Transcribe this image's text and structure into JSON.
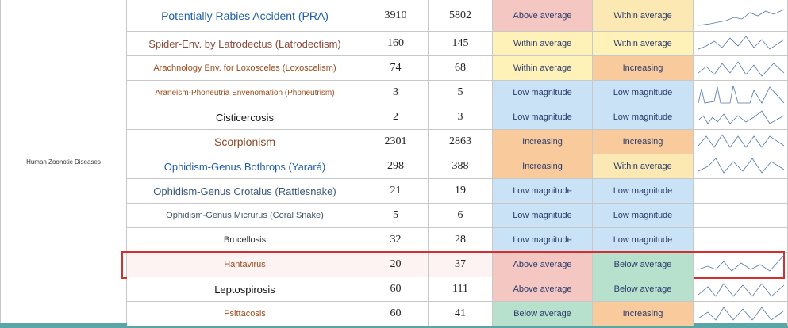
{
  "group": "Human Zoonotic Diseases",
  "rows": [
    {
      "disease": "Potentially Rabies Accident (PRA)",
      "text_color": "#1f5fa6",
      "size": 14,
      "previous": "3910",
      "current": "5802",
      "status1": "Above average",
      "color1": "#f4c7c3",
      "status2": "Within average",
      "color2": "#fce8b2"
    },
    {
      "disease": "Spider-Env. by Latrodectus (Latrodectism)",
      "text_color": "#8a4a3a",
      "size": 13,
      "previous": "160",
      "current": "145",
      "status1": "Within average",
      "color1": "#fff2b8",
      "status2": "Within average",
      "color2": "#fff2b8"
    },
    {
      "disease": "Arachnology Env. for Loxosceles (Loxoscelism)",
      "text_color": "#9a4a1a",
      "size": 11,
      "previous": "74",
      "current": "68",
      "status1": "Within average",
      "color1": "#fff2b8",
      "status2": "Increasing",
      "color2": "#f9cb9c"
    },
    {
      "disease": "Araneism-Phoneutria Envenomation (Phoneutrism)",
      "text_color": "#9a4a1a",
      "size": 10,
      "previous": "3",
      "current": "5",
      "status1": "Low magnitude",
      "color1": "#c9e2f5",
      "status2": "Low magnitude",
      "color2": "#c9e2f5"
    },
    {
      "disease": "Cisticercosis",
      "text_color": "#111111",
      "size": 13,
      "previous": "2",
      "current": "3",
      "status1": "Low magnitude",
      "color1": "#c9e2f5",
      "status2": "Low magnitude",
      "color2": "#c9e2f5"
    },
    {
      "disease": "Scorpionism",
      "text_color": "#8a4a2a",
      "size": 14,
      "previous": "2301",
      "current": "2863",
      "status1": "Increasing",
      "color1": "#f9cb9c",
      "status2": "Increasing",
      "color2": "#f9cb9c"
    },
    {
      "disease": "Ophidism-Genus Bothrops (Yarará)",
      "text_color": "#1f5fa6",
      "size": 13,
      "previous": "298",
      "current": "388",
      "status1": "Increasing",
      "color1": "#f9cb9c",
      "status2": "Within average",
      "color2": "#fce8b2"
    },
    {
      "disease": "Ophidism-Genus Crotalus (Rattlesnake)",
      "text_color": "#3a5a7a",
      "size": 13,
      "previous": "21",
      "current": "19",
      "status1": "Low magnitude",
      "color1": "#c9e2f5",
      "status2": "Low magnitude",
      "color2": "#c9e2f5"
    },
    {
      "disease": "Ophidism-Genus Micrurus (Coral Snake)",
      "text_color": "#445566",
      "size": 11,
      "previous": "5",
      "current": "6",
      "status1": "Low magnitude",
      "color1": "#c9e2f5",
      "status2": "Low magnitude",
      "color2": "#c9e2f5"
    },
    {
      "disease": "Brucellosis",
      "text_color": "#333333",
      "size": 11,
      "previous": "32",
      "current": "28",
      "status1": "Low magnitude",
      "color1": "#c9e2f5",
      "status2": "Low magnitude",
      "color2": "#c9e2f5"
    },
    {
      "disease": "Hantavirus",
      "text_color": "#9a4a1a",
      "size": 11,
      "previous": "20",
      "current": "37",
      "status1": "Above average",
      "color1": "#f4c7c3",
      "status2": "Below average",
      "color2": "#b7e1cd",
      "highlighted": true
    },
    {
      "disease": "Leptospirosis",
      "text_color": "#111111",
      "size": 13,
      "previous": "60",
      "current": "111",
      "status1": "Above average",
      "color1": "#f4c7c3",
      "status2": "Below average",
      "color2": "#b7e1cd"
    },
    {
      "disease": "Psittacosis",
      "text_color": "#9a4a1a",
      "size": 11,
      "previous": "60",
      "current": "41",
      "status1": "Below average",
      "color1": "#b7e1cd",
      "status2": "Increasing",
      "color2": "#f9cb9c"
    }
  ]
}
